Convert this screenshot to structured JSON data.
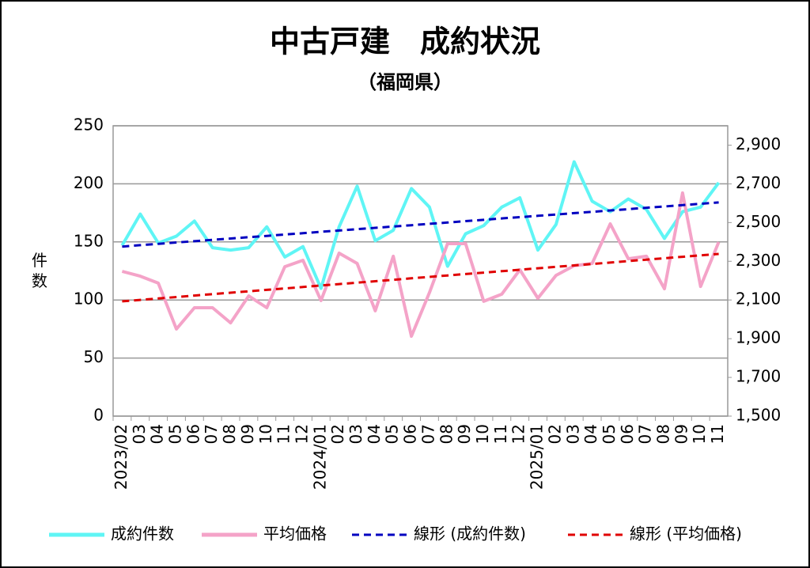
{
  "chart_data": {
    "type": "line",
    "title": "中古戸建　成約状況",
    "subtitle": "（福岡県）",
    "y_label": "件数",
    "categories": [
      "2023/02",
      "03",
      "04",
      "05",
      "06",
      "07",
      "08",
      "09",
      "10",
      "11",
      "12",
      "2024/01",
      "02",
      "03",
      "04",
      "05",
      "06",
      "07",
      "08",
      "09",
      "10",
      "11",
      "12",
      "2025/01",
      "02",
      "03",
      "04",
      "05",
      "06",
      "07",
      "08",
      "09",
      "10",
      "11"
    ],
    "series": [
      {
        "name": "成約件数",
        "color": "#5ff5f5",
        "axis": "y",
        "dash": false,
        "values": [
          147,
          174,
          149,
          155,
          168,
          145,
          143,
          145,
          163,
          137,
          146,
          110,
          163,
          198,
          151,
          160,
          196,
          180,
          129,
          157,
          164,
          180,
          188,
          143,
          165,
          219,
          185,
          176,
          187,
          178,
          153,
          176,
          180,
          201
        ]
      },
      {
        "name": "平均価格",
        "color": "#f4a3c8",
        "axis": "y2",
        "dash": false,
        "values": [
          2248,
          2223,
          2187,
          1950,
          2060,
          2060,
          1982,
          2121,
          2060,
          2272,
          2305,
          2097,
          2342,
          2289,
          2044,
          2326,
          1913,
          2138,
          2391,
          2391,
          2093,
          2130,
          2256,
          2109,
          2227,
          2277,
          2289,
          2493,
          2313,
          2326,
          2158,
          2653,
          2170,
          2399
        ]
      },
      {
        "name": "線形 (成約件数)",
        "color": "#0000c0",
        "axis": "y",
        "dash": true,
        "values": [
          146,
          147.2,
          148.3,
          149.5,
          150.6,
          151.8,
          152.9,
          154.1,
          155.2,
          156.4,
          157.5,
          158.7,
          159.8,
          161,
          162.1,
          163.3,
          164.4,
          165.6,
          166.7,
          167.9,
          169,
          170.2,
          171.3,
          172.5,
          173.6,
          174.8,
          175.9,
          177.1,
          178.2,
          179.4,
          180.5,
          181.7,
          182.8,
          184
        ]
      },
      {
        "name": "線形 (平均価格)",
        "color": "#e00000",
        "axis": "y2",
        "dash": true,
        "values": [
          2093,
          2100.4,
          2107.8,
          2115.3,
          2122.7,
          2130.1,
          2137.5,
          2145,
          2152.4,
          2159.8,
          2167.2,
          2174.7,
          2182.1,
          2189.5,
          2197,
          2204.4,
          2211.8,
          2219.2,
          2226.6,
          2234.1,
          2241.5,
          2248.9,
          2256.3,
          2263.8,
          2271.2,
          2278.6,
          2286,
          2293.5,
          2300.9,
          2308.3,
          2315.7,
          2323.2,
          2330.6,
          2338
        ]
      }
    ],
    "ylim": [
      0,
      250
    ],
    "yticks": [
      0,
      50,
      100,
      150,
      200,
      250
    ],
    "y2lim": [
      1500,
      3000
    ],
    "y2ticks": [
      {
        "value": 1500,
        "label": "1,500"
      },
      {
        "value": 1700,
        "label": "1,700"
      },
      {
        "value": 1900,
        "label": "1,900"
      },
      {
        "value": 2100,
        "label": "2,100"
      },
      {
        "value": 2300,
        "label": "2,300"
      },
      {
        "value": 2500,
        "label": "2,500"
      },
      {
        "value": 2700,
        "label": "2,700"
      },
      {
        "value": 2900,
        "label": "2,900"
      }
    ],
    "grid": true,
    "legend": "bottom"
  }
}
